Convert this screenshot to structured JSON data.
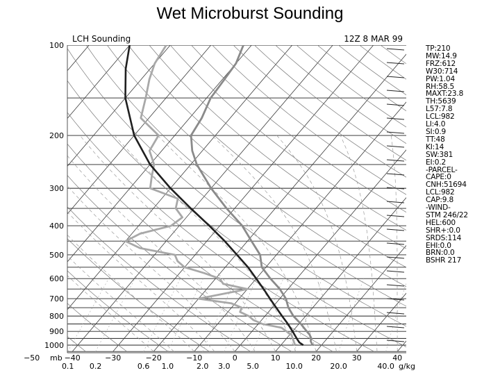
{
  "title": "Wet Microburst Sounding",
  "header": {
    "left": "LCH Sounding",
    "right": "12Z  8 MAR 99"
  },
  "indices": [
    "TP:210",
    "MW:14.9",
    "FRZ:612",
    "W30:714",
    "PW:1.04",
    "RH:58.5",
    "MAXT:23.8",
    "TH:5639",
    "L57:7.8",
    "LCL:982",
    "LI:4.0",
    "SI:0.9",
    "TT:48",
    "KI:14",
    "SW:381",
    "EI:0.2",
    "-PARCEL-",
    "CAPE:0",
    "CNH:51694",
    "LCL:982",
    "CAP:9.8",
    "-WIND-",
    "STM 246/22",
    "HEL:600",
    "SHR+:0.0",
    "SRDS:114",
    "EHI:0.0",
    "BRN:0.0",
    "BSHR 217"
  ],
  "chart_data": {
    "type": "line",
    "title": "Wet Microburst Sounding",
    "ylabel": "mb",
    "xlabel": "",
    "pressure_axis": {
      "scale": "log",
      "range_mb": [
        100,
        1050
      ],
      "ticks": [
        100,
        200,
        300,
        400,
        500,
        600,
        700,
        800,
        900,
        1000
      ],
      "unit_label": "mb"
    },
    "temperature_axis": {
      "range_c": [
        -50,
        50
      ],
      "skewed": true,
      "ticks": [
        -50,
        -40,
        -30,
        -20,
        -10,
        0,
        10,
        20,
        30,
        40
      ]
    },
    "mixing_ratio_labels": [
      "0.1",
      "0.2",
      "0.6",
      "1.0",
      "2.0",
      "3.0",
      "5.0",
      "10.0",
      "20.0",
      "40.0"
    ],
    "mixing_ratio_unit": "g/kg",
    "mixing_ratio_values": [
      0.1,
      0.2,
      0.6,
      1.0,
      2.0,
      3.0,
      5.0,
      10.0,
      20.0,
      40.0
    ],
    "series": [
      {
        "role": "temperature",
        "color": "#8a8a8a",
        "pressure": [
          1000,
          970,
          950,
          925,
          900,
          875,
          850,
          800,
          750,
          700,
          650,
          600,
          550,
          500,
          450,
          400,
          350,
          300,
          250,
          225,
          200,
          175,
          150,
          130,
          115,
          100
        ],
        "values": [
          17.8,
          16.5,
          16.0,
          15.0,
          13.5,
          12.0,
          10.5,
          7.0,
          4.0,
          1.5,
          -2.0,
          -6.5,
          -11.0,
          -14.0,
          -19.0,
          -24.5,
          -32.0,
          -40.0,
          -48.5,
          -52.5,
          -56.0,
          -57.0,
          -59.0,
          -59.5,
          -60.0,
          -62.0
        ]
      },
      {
        "role": "dewpoint",
        "color": "#a8a8a8",
        "pressure": [
          1000,
          975,
          950,
          925,
          900,
          875,
          850,
          825,
          800,
          775,
          750,
          725,
          700,
          675,
          650,
          625,
          600,
          575,
          550,
          525,
          500,
          475,
          450,
          425,
          400,
          375,
          350,
          325,
          300,
          275,
          250,
          225,
          200,
          175,
          150,
          130,
          115,
          100
        ],
        "values": [
          13.5,
          12.5,
          11.5,
          10.5,
          8.5,
          6.5,
          1.0,
          -2.0,
          -4.0,
          -7.0,
          -7.5,
          -11.0,
          -20.0,
          -15.0,
          -10.0,
          -17.0,
          -19.0,
          -24.0,
          -30.0,
          -33.0,
          -35.0,
          -45.0,
          -50.0,
          -48.0,
          -42.0,
          -41.0,
          -44.5,
          -46.0,
          -55.0,
          -57.0,
          -59.0,
          -63.0,
          -64.0,
          -72.0,
          -75.0,
          -78.0,
          -80.0,
          -81.0
        ]
      },
      {
        "role": "parcel",
        "color": "#1f1f1f",
        "pressure": [
          1000,
          980,
          950,
          900,
          850,
          800,
          750,
          700,
          650,
          600,
          550,
          500,
          450,
          400,
          350,
          300,
          250,
          200,
          150,
          120,
          100
        ],
        "values": [
          15.5,
          14.0,
          12.5,
          10.0,
          7.3,
          4.2,
          1.0,
          -2.4,
          -6.0,
          -10.0,
          -14.4,
          -19.7,
          -25.6,
          -32.6,
          -40.8,
          -50.0,
          -60.0,
          -70.0,
          -80.0,
          -86.0,
          -90.0
        ]
      }
    ]
  }
}
